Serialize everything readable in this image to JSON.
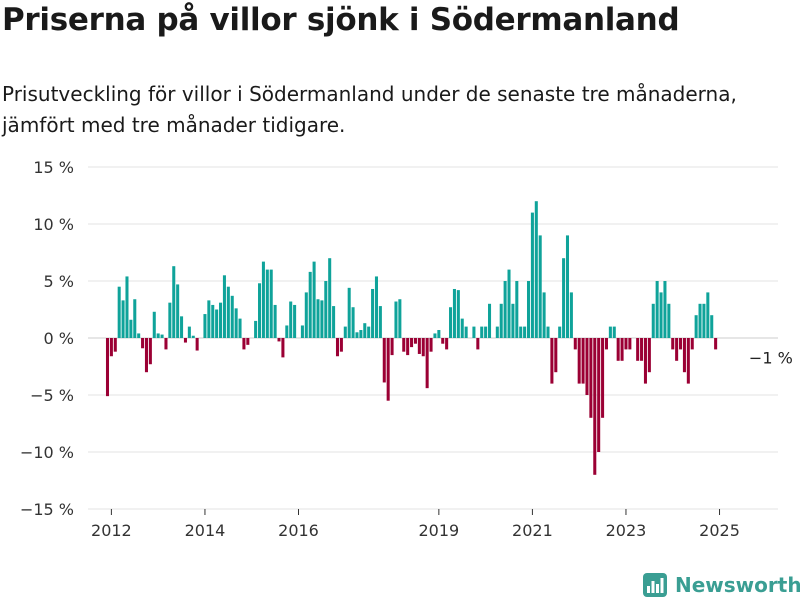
{
  "title": "Priserna på villor sjönk i Södermanland",
  "subtitle": "Prisutveckling för villor i Södermanland under de senaste tre månaderna, jämfört med tre månader tidigare.",
  "brand": {
    "name": "Newsworthy",
    "logo_icon": "newsworthy-bar-chart-logo-icon",
    "color": "#3a9e93"
  },
  "chart_data": {
    "type": "bar",
    "x_unit": "month",
    "y_unit": "%",
    "ylim": [
      -15,
      15
    ],
    "y_ticks": [
      15,
      10,
      5,
      0,
      -5,
      -10,
      -15
    ],
    "y_tick_labels": [
      "15 %",
      "10 %",
      "5 %",
      "0 %",
      "−5 %",
      "−10 %",
      "−15 %"
    ],
    "xlim": [
      "2011-07",
      "2026-04"
    ],
    "x_ticks": [
      "2012-01",
      "2014-01",
      "2016-01",
      "2019-01",
      "2021-01",
      "2023-01",
      "2025-01"
    ],
    "x_tick_labels": [
      "2012",
      "2014",
      "2016",
      "2019",
      "2021",
      "2023",
      "2025"
    ],
    "grid": "horizontal",
    "legend": "none",
    "colors": {
      "positive": "#0fa39a",
      "negative": "#9b0034",
      "grid": "#e3e3e3",
      "zero_line": "#cccccc"
    },
    "annotations": [
      {
        "x": "2025-07",
        "y": -1,
        "text": "−1 %"
      }
    ],
    "series": [
      {
        "start": "2011-12",
        "values": [
          -5.1,
          -1.6,
          -1.2,
          4.5,
          3.3,
          5.4,
          1.6,
          3.4,
          0.4,
          -0.9,
          -3.0,
          -2.3,
          2.3,
          0.4,
          0.3,
          -1.0,
          3.1,
          6.3,
          4.7,
          1.9,
          -0.4,
          1.0,
          0.2,
          -1.1,
          0,
          2.1,
          3.3,
          2.9,
          2.5,
          3.1,
          5.5,
          4.5,
          3.7,
          2.6,
          1.7,
          -1.0,
          -0.6,
          0,
          1.5,
          4.8,
          6.7,
          6.0,
          6.0,
          2.9,
          -0.3,
          -1.7,
          1.1,
          3.2,
          2.9,
          0,
          1.1,
          4.0,
          5.8,
          6.7,
          3.4,
          3.3,
          5.0,
          7.0,
          2.8,
          -1.6,
          -1.2,
          1.0,
          4.4,
          2.7,
          0.5,
          0.7,
          1.3,
          1.0,
          4.3,
          5.4,
          2.8,
          -3.9,
          -5.5,
          -1.5,
          3.2,
          3.4,
          -1.2,
          -1.5,
          -0.8,
          -0.5,
          -1.4,
          -1.6,
          -4.4,
          -1.2,
          0.4,
          0.7,
          -0.5,
          -1.0,
          2.7,
          4.3,
          4.2,
          1.7,
          1.0,
          0,
          1.0,
          -1.0,
          1.0,
          1.0,
          3.0,
          0,
          1.0,
          3.0,
          5.0,
          6.0,
          3.0,
          5.0,
          1.0,
          1.0,
          5.0,
          11.0,
          12.0,
          9.0,
          4.0,
          1.0,
          -4.0,
          -3.0,
          1.0,
          7.0,
          9.0,
          4.0,
          -1.0,
          -4.0,
          -4.0,
          -5.0,
          -7.0,
          -12.0,
          -10.0,
          -7.0,
          -1.0,
          1.0,
          1.0,
          -2.0,
          -2.0,
          -1.0,
          -1.0,
          0,
          -2.0,
          -2.0,
          -4.0,
          -3.0,
          3.0,
          5.0,
          4.0,
          5.0,
          3.0,
          -1.0,
          -2.0,
          -1.0,
          -3.0,
          -4.0,
          -1.0,
          2.0,
          3.0,
          3.0,
          4.0,
          2.0,
          -1.0
        ]
      }
    ]
  }
}
